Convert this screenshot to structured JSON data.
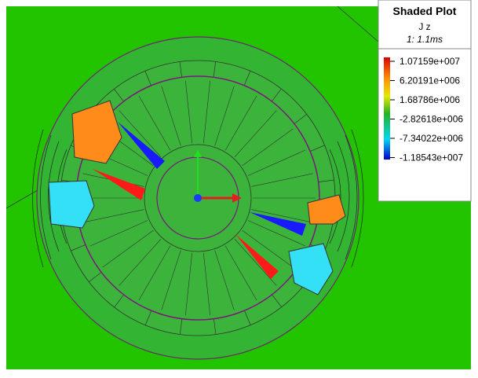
{
  "legend": {
    "title": "Shaded Plot",
    "quantity": "J z",
    "time": "1: 1.1ms",
    "levels": [
      "1.07159e+007",
      "6.20191e+006",
      "1.68786e+006",
      "-2.82618e+006",
      "-7.34022e+006",
      "-1.18543e+007"
    ]
  }
}
